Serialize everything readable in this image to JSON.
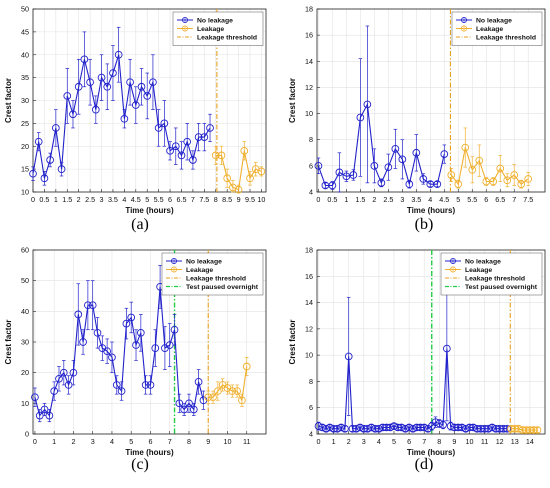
{
  "colors": {
    "no_leakage": "#2222cc",
    "leakage": "#f0b030",
    "threshold": "#e8a020",
    "paused": "#22cc44"
  },
  "labels": [
    "(a)",
    "(b)",
    "(c)",
    "(d)"
  ],
  "chart_data": [
    {
      "type": "line",
      "panel": "(a)",
      "xlabel": "Time (hours)",
      "ylabel": "Crest factor",
      "xlim": [
        0,
        10.2
      ],
      "ylim": [
        10,
        50
      ],
      "xticks": [
        0,
        0.5,
        1,
        1.5,
        2,
        2.5,
        3,
        3.5,
        4,
        4.5,
        5,
        5.5,
        6,
        6.5,
        7,
        7.5,
        8,
        8.5,
        9,
        9.5,
        10
      ],
      "xtick_labels": [
        "0",
        "0.5",
        "1",
        "1.5",
        "2",
        "2.5",
        "3",
        "3.5",
        "4",
        "4.5",
        "5",
        "5.5",
        "6",
        "6.5",
        "7",
        "7.5",
        "8",
        "8.5",
        "9",
        "9.5",
        "10"
      ],
      "yticks": [
        10,
        15,
        20,
        25,
        30,
        35,
        40,
        45,
        50
      ],
      "grid": true,
      "legend": "top-right",
      "legend_entries": [
        "No leakage",
        "Leakage",
        "Leakage threshold"
      ],
      "series": [
        {
          "name": "No leakage",
          "x": [
            0,
            0.25,
            0.5,
            0.75,
            1,
            1.25,
            1.5,
            1.75,
            2,
            2.25,
            2.5,
            2.75,
            3,
            3.25,
            3.5,
            3.75,
            4,
            4.25,
            4.5,
            4.75,
            5,
            5.25,
            5.5,
            5.75,
            6,
            6.25,
            6.5,
            6.75,
            7,
            7.25,
            7.5,
            7.75
          ],
          "y": [
            14,
            21,
            13,
            17,
            24,
            15,
            31,
            27,
            33,
            39,
            34,
            28,
            35,
            33,
            36,
            40,
            26,
            34,
            29,
            33,
            31,
            34,
            24,
            25,
            19,
            20,
            18,
            21,
            17,
            22,
            22,
            24
          ],
          "err": [
            1.5,
            2,
            1.5,
            1.5,
            4,
            1.5,
            6,
            3,
            6,
            6,
            5,
            3,
            5,
            5,
            6,
            6,
            2,
            5,
            4,
            4,
            5,
            6,
            4,
            5,
            2,
            4,
            3,
            4,
            2,
            3,
            3,
            3
          ]
        },
        {
          "name": "Leakage",
          "x": [
            8,
            8.25,
            8.5,
            8.75,
            9,
            9.25,
            9.5,
            9.75,
            10
          ],
          "y": [
            18,
            18,
            13,
            11,
            10.5,
            19,
            13,
            15,
            14.5
          ],
          "err": [
            2,
            2,
            2,
            1.5,
            1,
            2,
            1.5,
            1.5,
            1
          ]
        }
      ],
      "threshold_x": 8.05
    },
    {
      "type": "line",
      "panel": "(b)",
      "xlabel": "Time (hours)",
      "ylabel": "Crest factor",
      "xlim": [
        -0.05,
        8.1
      ],
      "ylim": [
        4,
        18
      ],
      "xticks": [
        0,
        0.5,
        1,
        1.5,
        2,
        2.5,
        3,
        3.5,
        4,
        4.5,
        5,
        5.5,
        6,
        6.5,
        7,
        7.5
      ],
      "xtick_labels": [
        "0",
        "0.5",
        "1",
        "1.5",
        "2",
        "2.5",
        "3",
        "3.5",
        "4",
        "4.5",
        "5",
        "5.5",
        "6",
        "6.5",
        "7",
        "7.5"
      ],
      "yticks": [
        4,
        6,
        8,
        10,
        12,
        14,
        16,
        18
      ],
      "grid": true,
      "legend": "top-right",
      "legend_entries": [
        "No leakage",
        "Leakage",
        "Leakage threshold"
      ],
      "series": [
        {
          "name": "No leakage",
          "x": [
            0,
            0.25,
            0.5,
            0.75,
            1,
            1.25,
            1.5,
            1.75,
            2,
            2.25,
            2.5,
            2.75,
            3,
            3.25,
            3.5,
            3.75,
            4,
            4.25,
            4.5
          ],
          "y": [
            6,
            4.5,
            4.5,
            5.5,
            5.2,
            5.3,
            9.7,
            10.7,
            6,
            4.7,
            5.9,
            7.3,
            6.5,
            4.6,
            7,
            5,
            4.6,
            4.6,
            6.9
          ],
          "err": [
            0.6,
            0.2,
            0.3,
            1.5,
            0.4,
            0.4,
            4.5,
            6,
            1.3,
            0.3,
            1,
            1.5,
            1.5,
            0.3,
            1.4,
            0.4,
            0.2,
            0.2,
            0.7
          ]
        },
        {
          "name": "Leakage",
          "x": [
            4.75,
            5,
            5.25,
            5.5,
            5.75,
            6,
            6.25,
            6.5,
            6.75,
            7,
            7.25,
            7.5
          ],
          "y": [
            5.3,
            4.6,
            7.4,
            5.7,
            6.4,
            4.8,
            4.8,
            5.8,
            4.9,
            5.3,
            4.6,
            5
          ],
          "err": [
            0.5,
            0.3,
            1.5,
            1,
            1.2,
            0.3,
            0.3,
            1,
            0.5,
            0.8,
            0.3,
            0.5
          ]
        }
      ],
      "threshold_x": 4.72
    },
    {
      "type": "line",
      "panel": "(c)",
      "xlabel": "Time (hours)",
      "ylabel": "Crest factor",
      "xlim": [
        -0.1,
        12
      ],
      "ylim": [
        0,
        60
      ],
      "xticks": [
        0,
        1,
        2,
        3,
        4,
        5,
        6,
        7,
        8,
        9,
        10,
        11
      ],
      "xtick_labels": [
        "0",
        "1",
        "2",
        "3",
        "4",
        "5",
        "6",
        "7",
        "8",
        "9",
        "10",
        "11"
      ],
      "yticks": [
        0,
        10,
        20,
        30,
        40,
        50,
        60
      ],
      "grid": true,
      "legend": "top-right",
      "legend_entries": [
        "No leakage",
        "Leakage",
        "Leakage threshold",
        "Test paused overnight"
      ],
      "series": [
        {
          "name": "No leakage",
          "x": [
            0,
            0.25,
            0.5,
            0.75,
            1,
            1.25,
            1.5,
            1.75,
            2,
            2.25,
            2.5,
            2.75,
            3,
            3.25,
            3.5,
            3.75,
            4,
            4.25,
            4.5,
            4.75,
            5,
            5.25,
            5.5,
            5.75,
            6,
            6.25,
            6.5,
            6.75,
            7,
            7.25,
            7.5,
            7.75,
            8,
            8.25,
            8.5,
            8.75
          ],
          "y": [
            12,
            6,
            8,
            6,
            14,
            18,
            20,
            16,
            20,
            39,
            30,
            42,
            42,
            33,
            28,
            27,
            25,
            16,
            14,
            36,
            38,
            29,
            33,
            16,
            16,
            28,
            48,
            28,
            29,
            34,
            10,
            8,
            10,
            8,
            17,
            11
          ],
          "err": [
            3,
            2,
            2,
            2,
            3,
            4,
            4,
            3,
            4,
            10,
            4,
            8,
            8,
            5,
            4,
            4,
            5,
            3,
            3,
            5,
            5,
            5,
            6,
            3,
            3,
            6,
            7,
            7,
            7,
            5,
            3,
            2,
            3,
            2,
            4,
            3
          ]
        },
        {
          "name": "Leakage",
          "x": [
            9,
            9.25,
            9.5,
            9.75,
            10,
            10.25,
            10.5,
            10.75,
            11
          ],
          "y": [
            12,
            12,
            14,
            16,
            15,
            14,
            14,
            11,
            22
          ],
          "err": [
            2,
            2,
            3,
            2,
            2,
            2,
            2,
            2,
            3
          ]
        }
      ],
      "threshold_x": 9.0,
      "paused_x": 7.25
    },
    {
      "type": "line",
      "panel": "(d)",
      "xlabel": "Time (hours)",
      "ylabel": "Crest factor",
      "xlim": [
        -0.1,
        15
      ],
      "ylim": [
        4,
        18
      ],
      "xticks": [
        0,
        1,
        2,
        3,
        4,
        5,
        6,
        7,
        8,
        9,
        10,
        11,
        12,
        13,
        14
      ],
      "xtick_labels": [
        "0",
        "1",
        "2",
        "3",
        "4",
        "5",
        "6",
        "7",
        "8",
        "9",
        "10",
        "11",
        "12",
        "13",
        "14"
      ],
      "yticks": [
        4,
        6,
        8,
        10,
        12,
        14,
        16,
        18
      ],
      "grid": true,
      "legend": "top-right",
      "legend_entries": [
        "No leakage",
        "Leakage",
        "Leakage threshold",
        "Test paused overnight"
      ],
      "series": [
        {
          "name": "No leakage",
          "x": [
            0,
            0.25,
            0.5,
            0.75,
            1,
            1.25,
            1.5,
            1.75,
            2,
            2.25,
            2.5,
            2.75,
            3,
            3.25,
            3.5,
            3.75,
            4,
            4.25,
            4.5,
            4.75,
            5,
            5.25,
            5.5,
            5.75,
            6,
            6.25,
            6.5,
            6.75,
            7,
            7.25,
            7.5,
            7.75,
            8,
            8.25,
            8.5,
            8.75,
            9,
            9.25,
            9.5,
            9.75,
            10,
            10.25,
            10.5,
            10.75,
            11,
            11.25,
            11.5,
            11.75,
            12,
            12.25,
            12.5
          ],
          "y": [
            4.6,
            4.5,
            4.4,
            4.5,
            4.4,
            4.4,
            4.5,
            4.4,
            9.9,
            4.4,
            4.4,
            4.5,
            4.4,
            4.4,
            4.5,
            4.4,
            4.4,
            4.5,
            4.5,
            4.5,
            4.6,
            4.5,
            4.5,
            4.4,
            4.5,
            4.4,
            4.5,
            4.5,
            4.5,
            4.4,
            4.6,
            4.9,
            4.8,
            4.7,
            10.5,
            4.6,
            4.5,
            4.5,
            4.5,
            4.4,
            4.5,
            4.5,
            4.4,
            4.4,
            4.4,
            4.4,
            4.5,
            4.4,
            4.4,
            4.4,
            4.4
          ],
          "err": [
            0.3,
            0.2,
            0.2,
            0.2,
            0.2,
            0.2,
            0.2,
            0.2,
            4.5,
            0.2,
            0.2,
            0.2,
            0.2,
            0.2,
            0.2,
            0.2,
            0.2,
            0.2,
            0.2,
            0.2,
            0.2,
            0.2,
            0.2,
            0.2,
            0.2,
            0.2,
            0.2,
            0.2,
            0.2,
            0.2,
            0.3,
            0.4,
            0.3,
            0.3,
            5.5,
            0.3,
            0.2,
            0.2,
            0.2,
            0.2,
            0.2,
            0.2,
            0.2,
            0.2,
            0.2,
            0.2,
            0.2,
            0.2,
            0.2,
            0.2,
            0.2
          ]
        },
        {
          "name": "Leakage",
          "x": [
            12.75,
            13,
            13.25,
            13.5,
            13.75,
            14,
            14.25,
            14.5
          ],
          "y": [
            4.4,
            4.4,
            4.4,
            4.3,
            4.3,
            4.3,
            4.3,
            4.3
          ],
          "err": [
            0.2,
            0.2,
            0.2,
            0.2,
            0.2,
            0.2,
            0.2,
            0.2
          ]
        }
      ],
      "threshold_x": 12.7,
      "paused_x": 7.5
    }
  ]
}
